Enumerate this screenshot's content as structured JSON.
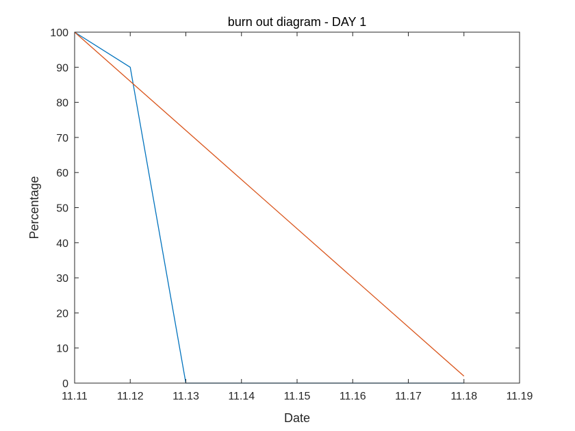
{
  "chart_data": {
    "type": "line",
    "title": "burn out diagram - DAY 1",
    "xlabel": "Date",
    "ylabel": "Percentage",
    "xlim": [
      11.11,
      11.19
    ],
    "ylim": [
      0,
      100
    ],
    "xticks": [
      11.11,
      11.12,
      11.13,
      11.14,
      11.15,
      11.16,
      11.17,
      11.18,
      11.19
    ],
    "xtick_labels": [
      "11.11",
      "11.12",
      "11.13",
      "11.14",
      "11.15",
      "11.16",
      "11.17",
      "11.18",
      "11.19"
    ],
    "yticks": [
      0,
      10,
      20,
      30,
      40,
      50,
      60,
      70,
      80,
      90,
      100
    ],
    "ytick_labels": [
      "0",
      "10",
      "20",
      "30",
      "40",
      "50",
      "60",
      "70",
      "80",
      "90",
      "100"
    ],
    "grid": false,
    "legend": "none",
    "series": [
      {
        "color": "#0072BD",
        "x": [
          11.11,
          11.12,
          11.13,
          11.18
        ],
        "y": [
          100,
          90,
          0,
          0
        ]
      },
      {
        "color": "#D95319",
        "x": [
          11.11,
          11.18
        ],
        "y": [
          100,
          2
        ]
      }
    ]
  }
}
